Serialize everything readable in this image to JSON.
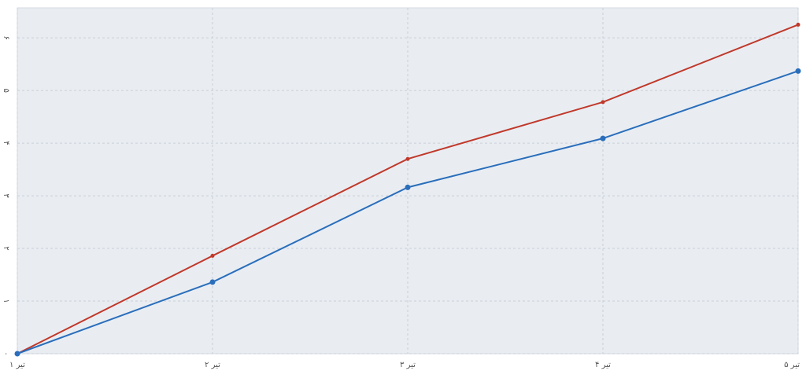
{
  "chart_data": {
    "type": "line",
    "categories": [
      "۱ تیر",
      "۲ تیر",
      "۳ تیر",
      "۴ تیر",
      "۵ تیر"
    ],
    "series": [
      {
        "color": "#c0392b",
        "values": [
          0,
          1.86,
          3.7,
          4.78,
          6.25
        ]
      },
      {
        "color": "#2a6ebb",
        "values": [
          0,
          1.36,
          3.16,
          4.09,
          5.37
        ]
      }
    ],
    "ylim": [
      0,
      6.57
    ],
    "yticks": [
      {
        "value": 0,
        "label": "۰"
      },
      {
        "value": 1,
        "label": "۱"
      },
      {
        "value": 2,
        "label": "۲"
      },
      {
        "value": 3,
        "label": "۳"
      },
      {
        "value": 4,
        "label": "۴"
      },
      {
        "value": 5,
        "label": "۵"
      },
      {
        "value": 6,
        "label": "۶"
      }
    ],
    "grid": true
  }
}
